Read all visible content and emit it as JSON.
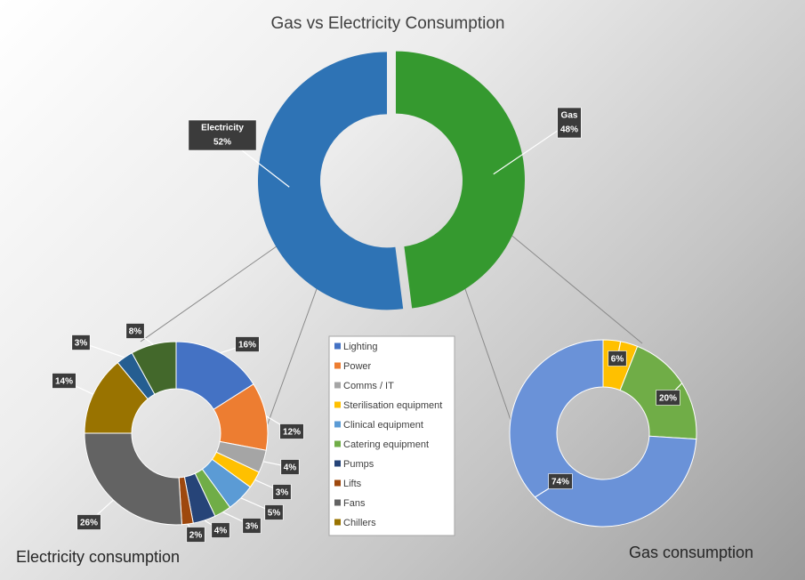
{
  "chart_data": [
    {
      "type": "donut",
      "title": "Gas vs Electricity Consumption",
      "categories": [
        "Electricity",
        "Gas"
      ],
      "values": [
        52,
        48
      ],
      "value_labels": [
        "52%",
        "48%"
      ],
      "colors": [
        "#2e73b5",
        "#35992f"
      ]
    },
    {
      "type": "donut",
      "title": "Electricity consumption",
      "categories": [
        "Lighting",
        "Power",
        "Comms / IT",
        "Sterilisation equipment",
        "Clinical equipment",
        "Catering equipment",
        "Pumps",
        "Lifts",
        "Fans",
        "Chillers",
        null,
        null
      ],
      "values": [
        16,
        12,
        4,
        3,
        5,
        3,
        4,
        2,
        26,
        14,
        3,
        8
      ],
      "value_labels": [
        "16%",
        "12%",
        "4%",
        "3%",
        "5%",
        "3%",
        "4%",
        "2%",
        "26%",
        "14%",
        "3%",
        "8%"
      ],
      "colors": [
        "#4472c4",
        "#ed7d31",
        "#a5a5a5",
        "#ffc000",
        "#5b9bd5",
        "#70ad47",
        "#264478",
        "#9e480e",
        "#636363",
        "#997300",
        "#255e91",
        "#43682b"
      ],
      "legend": true
    },
    {
      "type": "donut",
      "title": "Gas consumption",
      "categories": [
        null,
        null,
        null
      ],
      "values": [
        6,
        20,
        74
      ],
      "value_labels": [
        "6%",
        "20%",
        "74%"
      ],
      "colors": [
        "#ffc000",
        "#70ad47",
        "#6a92d8"
      ]
    }
  ]
}
